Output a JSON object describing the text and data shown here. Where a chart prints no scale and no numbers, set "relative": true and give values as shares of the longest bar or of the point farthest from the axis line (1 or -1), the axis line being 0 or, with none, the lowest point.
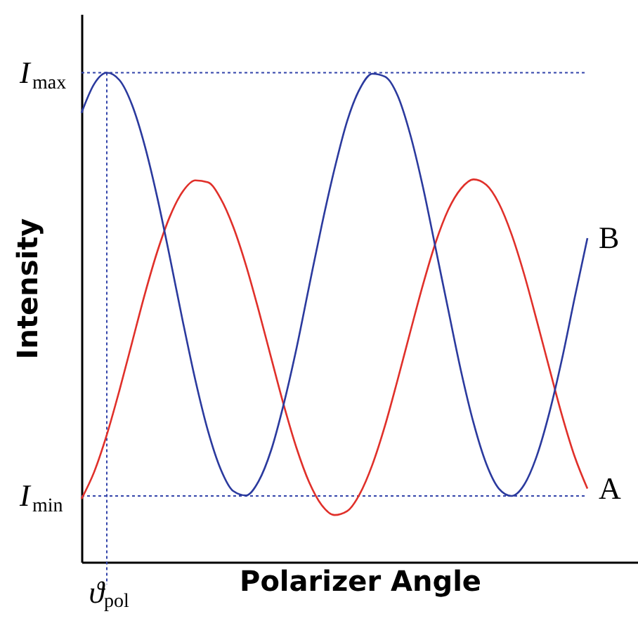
{
  "chart_data": {
    "type": "line",
    "relative": true,
    "xlabel": "Polarizer Angle",
    "ylabel": "Intensity",
    "tick_labels": false,
    "grid": false,
    "categories": [
      null,
      null,
      null,
      null,
      null,
      null,
      null,
      null,
      null,
      null,
      null,
      null,
      null,
      null,
      null,
      null,
      null,
      null,
      null,
      null,
      null,
      null,
      null,
      null,
      null,
      null,
      null,
      null,
      null,
      null,
      null,
      null,
      null,
      null,
      null,
      null,
      null,
      null,
      null,
      null,
      null
    ],
    "series": [
      {
        "name": "A",
        "color": "#e0302a",
        "values": [
          0.129,
          0.184,
          0.26,
          0.351,
          0.449,
          0.547,
          0.635,
          0.707,
          0.757,
          0.78,
          0.776,
          0.743,
          0.685,
          0.607,
          0.515,
          0.417,
          0.32,
          0.233,
          0.163,
          0.116,
          0.096,
          0.104,
          0.139,
          0.199,
          0.279,
          0.373,
          0.471,
          0.567,
          0.653,
          0.72,
          0.763,
          0.782,
          0.771,
          0.733,
          0.67,
          0.588,
          0.493,
          0.395,
          0.299,
          0.215,
          0.15
        ]
      },
      {
        "name": "B",
        "color": "#2b3a9e",
        "values": [
          0.918,
          0.977,
          1.0,
          0.985,
          0.934,
          0.851,
          0.744,
          0.621,
          0.493,
          0.372,
          0.268,
          0.19,
          0.145,
          0.136,
          0.165,
          0.229,
          0.324,
          0.437,
          0.564,
          0.689,
          0.803,
          0.901,
          0.967,
          0.998,
          0.992,
          0.953,
          0.873,
          0.766,
          0.641,
          0.515,
          0.391,
          0.284,
          0.201,
          0.15,
          0.135,
          0.158,
          0.217,
          0.306,
          0.416,
          0.541,
          0.662
        ]
      }
    ],
    "ref_lines": [
      {
        "axis": "y",
        "value": 1.0,
        "label": "I$_{max}$",
        "color": "#3344aa",
        "line_style": "dotted"
      },
      {
        "axis": "y",
        "value": 0.135,
        "label": "I$_{min}$",
        "color": "#3344aa",
        "line_style": "dotted"
      }
    ],
    "annotations": [
      "ϑ$_{pol}$"
    ]
  }
}
